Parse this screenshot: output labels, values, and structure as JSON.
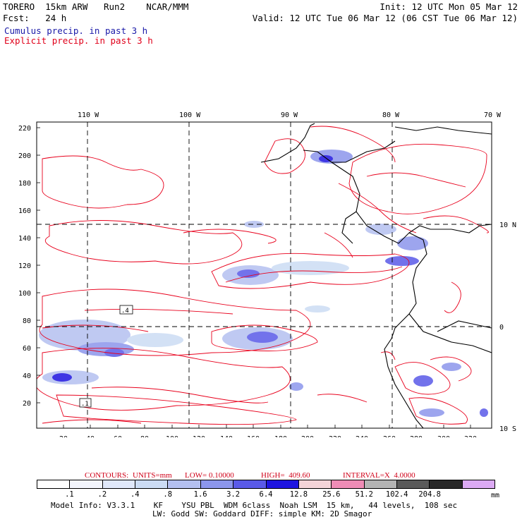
{
  "header": {
    "model": "TORERO  15km ARW   Run2    NCAR/MMM",
    "init": "Init: 12 UTC Mon 05 Mar 12",
    "fcst": "Fcst:   24 h",
    "valid": "Valid: 12 UTC Tue 06 Mar 12 (06 CST Tue 06 Mar 12)",
    "field_blue": "Cumulus precip. in past 3 h",
    "field_red": "Explicit precip. in past 3 h"
  },
  "colors": {
    "cumulus": "#1a1aa8",
    "explicit": "#e0001a",
    "contour": "#e8001c",
    "coast": "#000000"
  },
  "map": {
    "top_lon_labels": [
      "110 W",
      "100 W",
      "90 W",
      "80 W",
      "70 W"
    ],
    "right_lat_labels": [
      "10 N",
      "0",
      "10 S"
    ],
    "left_grid_labels": [
      "220",
      "200",
      "180",
      "160",
      "140",
      "120",
      "100",
      "80",
      "60",
      "40",
      "20"
    ],
    "bottom_grid_labels": [
      "20",
      "40",
      "60",
      "80",
      "100",
      "120",
      "140",
      "160",
      "180",
      "200",
      "220",
      "240",
      "260",
      "280",
      "300",
      "320"
    ],
    "box_labels": [
      ".4",
      ".1"
    ]
  },
  "contour_info": {
    "contours": "CONTOURS:",
    "units": "UNITS=mm",
    "low": "LOW= 0.10000",
    "high": "HIGH=  409.60",
    "interval": "INTERVAL=X  4.0000"
  },
  "colorbar": {
    "colors": [
      "#ffffff",
      "#f2f4fc",
      "#e0e8fa",
      "#ccdcf4",
      "#b4c0f0",
      "#8c96ec",
      "#5a5ae8",
      "#1e14e0",
      "#f4d4d8",
      "#ef8cb6",
      "#b4b4b4",
      "#5a5a5a",
      "#282828",
      "#dcaaf4"
    ],
    "labels": [
      ".1",
      ".2",
      ".4",
      ".8",
      "1.6",
      "3.2",
      "6.4",
      "12.8",
      "25.6",
      "51.2",
      "102.4",
      "204.8"
    ],
    "unit": "mm"
  },
  "footer": {
    "line1": "Model Info: V3.3.1    KF    YSU PBL  WDM 6class  Noah LSM  15 km,   44 levels,  108 sec",
    "line2": "LW: Godd SW: Goddard DIFF: simple KM: 2D Smagor"
  }
}
